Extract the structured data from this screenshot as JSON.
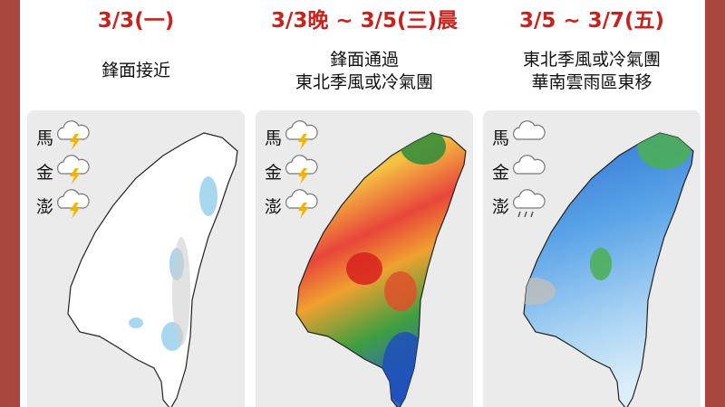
{
  "panels": [
    {
      "title": "3/3(一)",
      "description": [
        "鋒面接近"
      ],
      "islands": [
        "馬",
        "金",
        "澎"
      ]
    },
    {
      "title": "3/3晚 ~ 3/5(三)晨",
      "description": [
        "鋒面通過",
        "東北季風或冷氣團"
      ],
      "islands": [
        "馬",
        "金",
        "澎"
      ]
    },
    {
      "title": "3/5 ~ 3/7(五)",
      "description": [
        "東北季風或冷氣團",
        "華南雲雨區東移"
      ],
      "islands": [
        "馬",
        "金",
        "澎"
      ]
    }
  ]
}
